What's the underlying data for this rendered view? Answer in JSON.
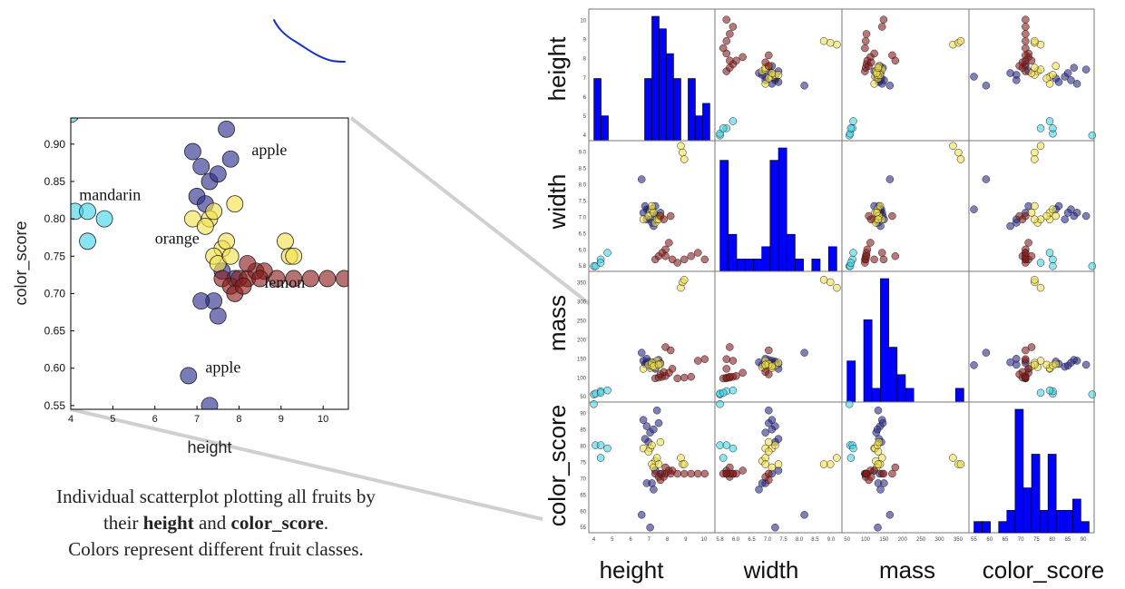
{
  "caption": {
    "line1": "Individual scatterplot plotting all fruits by",
    "line2_pre": "their ",
    "line2_b1": "height",
    "line2_mid": " and ",
    "line2_b2": "color_score",
    "line2_post": ".",
    "line3": "Colors represent different fruit classes."
  },
  "colors": {
    "apple": "#2a2a8e",
    "mandarin": "#3fd3e8",
    "orange": "#f2e04a",
    "lemon": "#8b1a1a",
    "hist": "#0000ff",
    "connector": "#d0d0d0",
    "ink": "#1530c8"
  },
  "chart_data": [
    {
      "type": "scatter",
      "xlabel": "height",
      "ylabel": "color_score",
      "xlim": [
        4,
        10.6
      ],
      "ylim": [
        0.545,
        0.935
      ],
      "x_ticks": [
        4,
        5,
        6,
        7,
        8,
        9,
        10
      ],
      "y_ticks": [
        0.55,
        0.6,
        0.65,
        0.7,
        0.75,
        0.8,
        0.85,
        0.9
      ],
      "y_tick_labels": [
        "0.55",
        "0.60",
        "0.65",
        "0.70",
        "0.75",
        "0.80",
        "0.85",
        "0.90"
      ],
      "annotations": [
        {
          "text": "mandarin",
          "x": 4.2,
          "y": 0.825
        },
        {
          "text": "apple",
          "x": 8.3,
          "y": 0.885
        },
        {
          "text": "orange",
          "x": 6.0,
          "y": 0.767
        },
        {
          "text": "lemon",
          "x": 8.6,
          "y": 0.708
        },
        {
          "text": "apple",
          "x": 7.2,
          "y": 0.594
        }
      ],
      "series": [
        {
          "key": "apple",
          "x": [
            7.7,
            6.9,
            7.1,
            7.0,
            7.3,
            7.5,
            7.2,
            7.8,
            7.6,
            7.4,
            7.1,
            7.5,
            7.9,
            6.8,
            7.3
          ],
          "y": [
            0.92,
            0.89,
            0.87,
            0.83,
            0.85,
            0.86,
            0.82,
            0.88,
            0.73,
            0.69,
            0.69,
            0.67,
            0.72,
            0.59,
            0.55
          ]
        },
        {
          "key": "mandarin",
          "x": [
            4.0,
            4.1,
            4.4,
            4.8,
            4.4
          ],
          "y": [
            0.94,
            0.81,
            0.81,
            0.8,
            0.77
          ]
        },
        {
          "key": "orange",
          "x": [
            6.9,
            7.3,
            7.2,
            7.4,
            7.6,
            7.7,
            7.4,
            7.9,
            9.1,
            9.2,
            9.3,
            7.5,
            7.8
          ],
          "y": [
            0.8,
            0.8,
            0.79,
            0.81,
            0.76,
            0.77,
            0.75,
            0.82,
            0.77,
            0.75,
            0.75,
            0.74,
            0.75
          ]
        },
        {
          "key": "lemon",
          "x": [
            7.6,
            7.8,
            8.0,
            8.2,
            8.4,
            8.6,
            8.9,
            9.3,
            9.7,
            10.1,
            10.5,
            7.9,
            8.1,
            8.5,
            8.2
          ],
          "y": [
            0.72,
            0.71,
            0.72,
            0.72,
            0.73,
            0.73,
            0.72,
            0.72,
            0.72,
            0.72,
            0.72,
            0.7,
            0.71,
            0.72,
            0.74
          ]
        }
      ]
    },
    {
      "type": "scatter_matrix",
      "variables": [
        "height",
        "width",
        "mass",
        "color_score"
      ],
      "axis_labels": [
        "height",
        "width",
        "mass",
        "color_score"
      ],
      "height_ticks": [
        4,
        5,
        6,
        7,
        8,
        9,
        10
      ],
      "width_ticks": [
        "5.8",
        "6.0",
        "6.5",
        "7.0",
        "7.5",
        "8.0",
        "8.5",
        "9.0"
      ],
      "mass_ticks": [
        "50",
        "100",
        "150",
        "200",
        "250",
        "300",
        "350"
      ],
      "color_score_ticks": [
        55,
        60,
        65,
        70,
        75,
        80,
        85,
        90
      ],
      "histograms": {
        "height": {
          "range": [
            4,
            10.8
          ],
          "counts": [
            5,
            2,
            0,
            0,
            0,
            0,
            0,
            5,
            10,
            9,
            7,
            5,
            0,
            5,
            2,
            3
          ]
        },
        "width": {
          "range": [
            5.8,
            9.4
          ],
          "counts": [
            9,
            3,
            1,
            1,
            1,
            2,
            9,
            10,
            3,
            1,
            0,
            1,
            0,
            2
          ]
        },
        "mass": {
          "range": [
            70,
            370
          ],
          "counts": [
            3,
            0,
            6,
            1,
            9,
            4,
            2,
            1,
            0,
            0,
            0,
            0,
            0,
            1
          ]
        },
        "color_score": {
          "range": [
            0.55,
            0.93
          ],
          "counts": [
            1,
            1,
            0,
            1,
            2,
            11,
            4,
            7,
            2,
            7,
            2,
            2,
            3,
            1
          ]
        }
      },
      "fruits": {
        "height": {
          "apple": [
            7.7,
            6.9,
            7.1,
            7.0,
            7.3,
            7.5,
            7.2,
            7.8,
            7.6,
            7.4,
            7.1,
            7.5,
            7.9,
            6.8,
            7.3
          ],
          "mandarin": [
            4.0,
            4.1,
            4.4,
            4.8,
            4.4
          ],
          "orange": [
            6.9,
            7.3,
            7.2,
            7.4,
            7.6,
            7.7,
            7.4,
            7.9,
            9.1,
            9.2,
            9.3,
            7.5,
            7.8
          ],
          "lemon": [
            7.6,
            7.8,
            8.0,
            8.2,
            8.4,
            8.6,
            8.9,
            9.3,
            9.7,
            10.1,
            10.5,
            7.9,
            8.1,
            8.5,
            8.2
          ]
        },
        "width": {
          "apple": [
            7.3,
            7.4,
            7.5,
            7.6,
            7.2,
            7.4,
            7.5,
            7.3,
            7.6,
            7.1,
            7.2,
            7.0,
            7.4,
            8.4,
            7.5
          ],
          "mandarin": [
            5.8,
            5.8,
            6.0,
            6.2,
            5.9
          ],
          "orange": [
            7.2,
            7.4,
            7.3,
            7.5,
            7.1,
            7.2,
            7.6,
            7.3,
            9.4,
            9.2,
            9.0,
            7.4,
            7.2
          ],
          "lemon": [
            6.0,
            6.1,
            6.2,
            6.3,
            6.5,
            6.0,
            5.9,
            6.0,
            6.1,
            6.2,
            6.0,
            7.3,
            7.2,
            7.3,
            6.1
          ]
        },
        "mass": {
          "apple": [
            150,
            160,
            155,
            152,
            145,
            148,
            158,
            162,
            140,
            150,
            165,
            156,
            154,
            180,
            149
          ],
          "mandarin": [
            76,
            78,
            84,
            86,
            80
          ],
          "orange": [
            140,
            142,
            150,
            148,
            144,
            160,
            155,
            152,
            342,
            356,
            362,
            146,
            150
          ],
          "lemon": [
            116,
            118,
            120,
            122,
            130,
            140,
            116,
            118,
            120,
            160,
            164,
            126,
            132,
            186,
            194
          ]
        }
      }
    }
  ]
}
